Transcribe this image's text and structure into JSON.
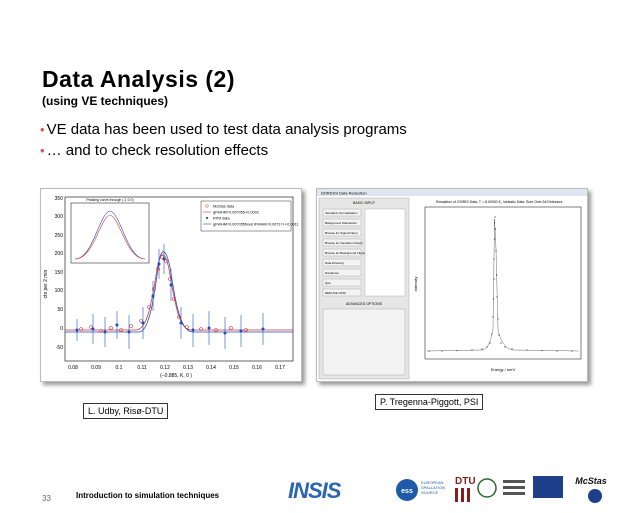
{
  "slide": {
    "title": "Data Analysis (2)",
    "subtitle": "(using VE techniques)",
    "bullets": [
      "VE data has been used to test data analysis programs",
      "… and to check resolution effects"
    ],
    "footer": "Introduction to simulation techniques",
    "page_number": "33",
    "captions": {
      "left": "L. Udby, Risø-DTU",
      "right": "P. Tregenna-Piggott, PSI"
    },
    "logos": {
      "insis": "INSIS",
      "ess_lines": [
        "EUROPEAN",
        "SPALLATION",
        "SOURCE"
      ],
      "dtu": "DTU",
      "mcstas": "McStas"
    },
    "accent_color": "#d9534f"
  },
  "left_figure": {
    "legend": [
      "McStas data",
      "gFWHM=0.007055+0.0002",
      "RITA data",
      "gFWHM=0.007055fixed  lFWHM=0.00717+/-0.0011"
    ],
    "inset_title": "Peaking curve through (-1 0 0)",
    "ylabel": "cts per 2 min",
    "xlabel": "(−0.885, K, 0 )",
    "yticks": [
      "350",
      "300",
      "250",
      "200",
      "150",
      "100",
      "50",
      "0",
      "-50"
    ],
    "xticks": [
      "0.08",
      "0.09",
      "0.1",
      "0.11",
      "0.12",
      "0.13",
      "0.14",
      "0.15",
      "0.16",
      "0.17"
    ]
  },
  "right_figure": {
    "window_title": "DDRDSS Data Reduction",
    "panel_header": "BASIC INPUT",
    "buttons": [
      "Vanadium Normalisation",
      "Background Subtraction",
      "Browse for Signal File(s)",
      "Browse for Vanadium File(s)",
      "Browse for Background File(s)",
      "Data Directory",
      "Disclaimer",
      "Quit",
      "REDUCE DATA"
    ],
    "advanced_header": "ADVANCED OPTIONS",
    "plot_title": "Simulation of OSIRIS Data, T = 8.00000 K, Inelastic Data: Sum Over All Detectors",
    "ylabel": "Intensity",
    "xlabel": "Energy  /  meV"
  }
}
